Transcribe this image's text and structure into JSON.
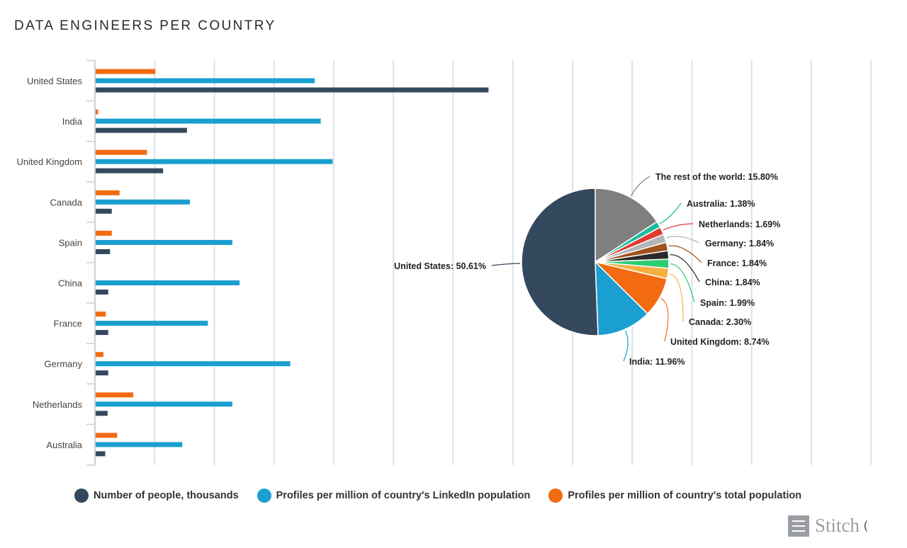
{
  "title": "DATA ENGINEERS PER COUNTRY",
  "legend": [
    {
      "label": "Number of people, thousands",
      "color": "#34495e"
    },
    {
      "label": "Profiles per million of country's LinkedIn population",
      "color": "#1a9fd0"
    },
    {
      "label": "Profiles per million of country's total population",
      "color": "#f36b10"
    }
  ],
  "brand": {
    "name": "Stitch",
    "tail": "(",
    "icon": "stitch-logo-icon"
  },
  "chart_data": [
    {
      "type": "bar",
      "orientation": "horizontal",
      "title": "",
      "grid": true,
      "categories": [
        "United States",
        "India",
        "United Kingdom",
        "Canada",
        "Spain",
        "China",
        "France",
        "Germany",
        "Netherlands",
        "Australia"
      ],
      "series": [
        {
          "name": "Profiles per million of country's total population",
          "color": "#f36b10",
          "values": [
            100,
            4,
            86,
            40,
            27,
            0,
            17,
            13,
            63,
            36
          ]
        },
        {
          "name": "Profiles per million of country's LinkedIn population",
          "color": "#1a9fd0",
          "values": [
            367,
            377,
            397,
            158,
            229,
            241,
            188,
            326,
            229,
            145
          ]
        },
        {
          "name": "Number of people, thousands",
          "color": "#34495e",
          "values": [
            658,
            153,
            113,
            27,
            24,
            21,
            21,
            21,
            20,
            16
          ]
        }
      ],
      "xlim": [
        0,
        1300
      ]
    },
    {
      "type": "pie",
      "slices": [
        {
          "label": "The rest of the world: 15.80%",
          "value": 15.8,
          "color": "#7f7f7f"
        },
        {
          "label": "Australia: 1.38%",
          "value": 1.38,
          "color": "#1abc9c"
        },
        {
          "label": "Netherlands: 1.69%",
          "value": 1.69,
          "color": "#e03c31"
        },
        {
          "label": "Germany: 1.84%",
          "value": 1.84,
          "color": "#b5b5b5"
        },
        {
          "label": "France: 1.84%",
          "value": 1.84,
          "color": "#a0521d"
        },
        {
          "label": "China: 1.84%",
          "value": 1.84,
          "color": "#2b2b2b"
        },
        {
          "label": "Spain: 1.99%",
          "value": 1.99,
          "color": "#2ecc71"
        },
        {
          "label": "Canada: 2.30%",
          "value": 2.3,
          "color": "#f5b041"
        },
        {
          "label": "United Kingdom: 8.74%",
          "value": 8.74,
          "color": "#f36b10"
        },
        {
          "label": "India: 11.96%",
          "value": 11.96,
          "color": "#1a9fd0"
        },
        {
          "label": "United States: 50.61%",
          "value": 50.61,
          "color": "#34495e"
        }
      ]
    }
  ]
}
